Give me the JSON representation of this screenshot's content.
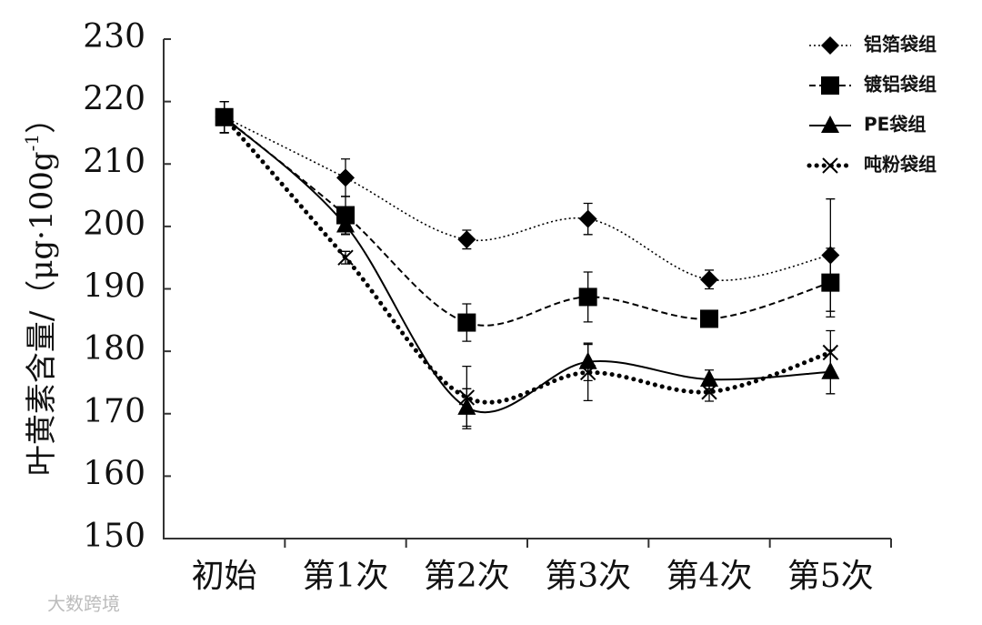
{
  "chart_data": {
    "type": "line",
    "ylabel": {
      "main": "叶黄素含量/（μg·100g",
      "sup": "-1",
      "end": "）"
    },
    "categories": [
      "初始",
      "第1次",
      "第2次",
      "第3次",
      "第4次",
      "第5次"
    ],
    "ylim": [
      150,
      230
    ],
    "yticks": [
      150,
      160,
      170,
      180,
      190,
      200,
      210,
      220,
      230
    ],
    "legend": "top-right",
    "series": [
      {
        "name": "铝箔袋组",
        "color": "#000000",
        "line_style": "dotted",
        "marker": "diamond",
        "values": [
          217.5,
          207.8,
          197.9,
          201.2,
          191.5,
          195.4
        ],
        "errors": [
          2.5,
          3,
          1.5,
          2.5,
          1.5,
          9
        ]
      },
      {
        "name": "镀铝袋组",
        "color": "#000000",
        "line_style": "dashed",
        "marker": "square",
        "values": [
          217.5,
          201.8,
          184.6,
          188.7,
          185.2,
          191
        ],
        "errors": [
          2.5,
          3,
          3,
          4,
          1,
          5.5
        ]
      },
      {
        "name": "PE袋组",
        "color": "#000000",
        "line_style": "solid",
        "marker": "triangle",
        "values": [
          217.5,
          200.2,
          171,
          178.3,
          175.5,
          176.7
        ],
        "errors": [
          2.5,
          1.5,
          3,
          3,
          1.5,
          3.5
        ]
      },
      {
        "name": "吨粉袋组",
        "color": "#000000",
        "line_style": "dotted-bold",
        "marker": "cross",
        "values": [
          217.5,
          195,
          172.6,
          176.6,
          173.5,
          179.8
        ],
        "errors": [
          2.5,
          1,
          5,
          4.5,
          1.5,
          3.5
        ]
      }
    ],
    "watermark": "大数跨境"
  }
}
